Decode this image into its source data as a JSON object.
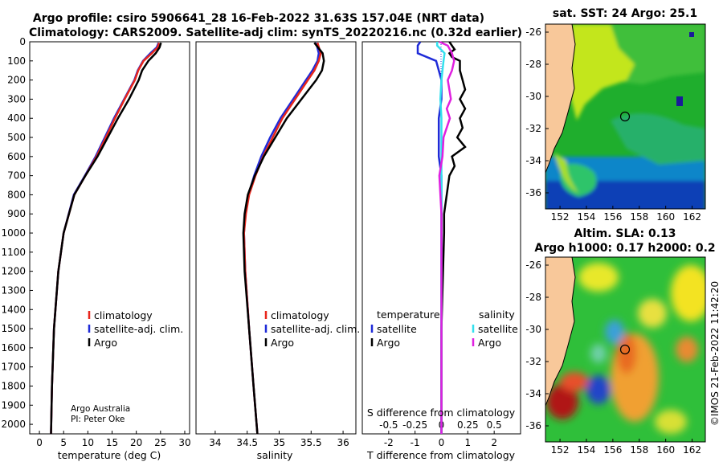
{
  "header": {
    "title_line1": "Argo profile: csiro 5906641_28 16-Feb-2022 31.63S 157.04E (NRT data)",
    "title_line2": "Climatology: CARS2009. Satellite-adj clim: synTS_20220216.nc (0.32d earlier)"
  },
  "colors": {
    "climatology": "#e8261c",
    "satellite_adj": "#1f2bd8",
    "argo": "#000000",
    "sat_salinity": "#33e0ee",
    "argo_salinity": "#e020e0",
    "land": "#f8c89a"
  },
  "chart_data": [
    {
      "type": "line",
      "name": "temperature-profile",
      "xlabel": "temperature (deg C)",
      "ylabel": "",
      "xlim": [
        -2,
        31
      ],
      "ylim": [
        0,
        2050
      ],
      "x_ticks": [
        "0",
        "5",
        "10",
        "15",
        "20",
        "25",
        "30"
      ],
      "y_ticks": [
        "0",
        "100",
        "200",
        "300",
        "400",
        "500",
        "600",
        "700",
        "800",
        "900",
        "1000",
        "1100",
        "1200",
        "1300",
        "1400",
        "1500",
        "1600",
        "1700",
        "1800",
        "1900",
        "2000"
      ],
      "legend": [
        "climatology",
        "satellite-adj. clim.",
        "Argo"
      ],
      "legend_position": "lower-right",
      "note_line1": "Argo Australia",
      "note_line2": "PI: Peter Oke",
      "series": [
        {
          "name": "climatology",
          "depth": [
            5,
            30,
            60,
            100,
            150,
            200,
            300,
            400,
            500,
            600,
            700,
            800,
            1000,
            1200,
            1500,
            1800,
            2050
          ],
          "values": [
            24.7,
            24.4,
            23.2,
            21.5,
            20.4,
            19.7,
            17.6,
            15.6,
            13.7,
            11.8,
            9.5,
            7.2,
            5.0,
            3.9,
            3.0,
            2.6,
            2.4
          ]
        },
        {
          "name": "satellite-adj. clim.",
          "depth": [
            5,
            30,
            60,
            100,
            150,
            200,
            300,
            400,
            500,
            600,
            700,
            800,
            1000,
            1200,
            1500,
            1800,
            2050
          ],
          "values": [
            24.6,
            24.2,
            22.9,
            21.4,
            20.3,
            19.6,
            17.5,
            15.4,
            13.5,
            11.6,
            9.4,
            7.1,
            5.0,
            3.9,
            3.0,
            2.6,
            2.4
          ]
        },
        {
          "name": "Argo",
          "depth": [
            5,
            30,
            60,
            100,
            150,
            200,
            300,
            400,
            500,
            600,
            700,
            800,
            1000,
            1200,
            1500,
            1800,
            2050
          ],
          "values": [
            25.1,
            24.8,
            24.0,
            22.5,
            21.2,
            20.5,
            18.5,
            16.2,
            14.1,
            12.0,
            9.5,
            7.2,
            5.0,
            3.9,
            3.0,
            2.6,
            2.4
          ]
        }
      ]
    },
    {
      "type": "line",
      "name": "salinity-profile",
      "xlabel": "salinity",
      "xlim": [
        33.7,
        36.2
      ],
      "ylim": [
        0,
        2050
      ],
      "x_ticks": [
        "34",
        "34.5",
        "35",
        "35.5",
        "36"
      ],
      "legend": [
        "climatology",
        "satellite-adj. clim.",
        "Argo"
      ],
      "legend_position": "lower-right",
      "series": [
        {
          "name": "climatology",
          "depth": [
            5,
            60,
            100,
            150,
            200,
            300,
            400,
            500,
            600,
            700,
            800,
            900,
            1000,
            1200,
            1500,
            1800,
            2050
          ],
          "values": [
            35.6,
            35.65,
            35.62,
            35.55,
            35.45,
            35.25,
            35.05,
            34.9,
            34.75,
            34.63,
            34.53,
            34.48,
            34.45,
            34.47,
            34.53,
            34.6,
            34.66
          ]
        },
        {
          "name": "satellite-adj. clim.",
          "depth": [
            5,
            60,
            100,
            150,
            200,
            300,
            400,
            500,
            600,
            700,
            800,
            900,
            1000,
            1200,
            1500,
            1800,
            2050
          ],
          "values": [
            35.58,
            35.62,
            35.6,
            35.52,
            35.42,
            35.22,
            35.02,
            34.86,
            34.72,
            34.61,
            34.52,
            34.47,
            34.45,
            34.47,
            34.53,
            34.6,
            34.66
          ]
        },
        {
          "name": "Argo",
          "depth": [
            5,
            60,
            100,
            150,
            200,
            300,
            400,
            500,
            600,
            700,
            800,
            900,
            1000,
            1200,
            1500,
            1800,
            2050
          ],
          "values": [
            35.55,
            35.68,
            35.7,
            35.67,
            35.58,
            35.35,
            35.12,
            34.94,
            34.76,
            34.62,
            34.51,
            34.46,
            34.44,
            34.46,
            34.53,
            34.6,
            34.66
          ]
        }
      ]
    },
    {
      "type": "line",
      "name": "difference-profile",
      "xlabel": "T difference from climatology",
      "xlabel2": "S difference from climatology",
      "xlim": [
        -3,
        3
      ],
      "ylim": [
        0,
        2050
      ],
      "x_ticks": [
        "-2",
        "-1",
        "0",
        "1",
        "2"
      ],
      "x2_ticks": [
        "-0.5",
        "-0.25",
        "0",
        "0.25",
        "0.5"
      ],
      "legend_temperature_heading": "temperature",
      "legend_salinity_heading": "salinity",
      "legend_temperature": [
        "satellite",
        "Argo"
      ],
      "legend_salinity": [
        "satellite",
        "Argo"
      ],
      "series": [
        {
          "name": "T satellite",
          "depth": [
            0,
            20,
            60,
            100,
            200,
            300,
            400,
            500,
            600,
            700,
            800,
            1000,
            1500,
            2050
          ],
          "values": [
            -0.8,
            -0.9,
            -0.9,
            -0.2,
            0,
            0,
            -0.1,
            -0.1,
            -0.1,
            0,
            0,
            0,
            0,
            0
          ]
        },
        {
          "name": "T Argo",
          "depth": [
            0,
            20,
            40,
            60,
            80,
            100,
            150,
            200,
            250,
            300,
            350,
            400,
            450,
            500,
            550,
            600,
            650,
            700,
            800,
            900,
            1000,
            1500,
            2050
          ],
          "values": [
            0.3,
            0.4,
            0.5,
            0.3,
            0.4,
            0.7,
            0.7,
            0.8,
            0.9,
            0.7,
            0.9,
            0.7,
            0.8,
            0.6,
            0.9,
            0.4,
            0.5,
            0.3,
            0.2,
            0.1,
            0.1,
            0,
            0
          ]
        },
        {
          "name": "S satellite",
          "depth": [
            0,
            20,
            60,
            100,
            200,
            300,
            400,
            500,
            700,
            1000,
            1500,
            2050
          ],
          "values": [
            -0.04,
            -0.04,
            0.03,
            0.02,
            0,
            -0.01,
            0,
            0,
            0,
            0,
            0,
            0
          ]
        },
        {
          "name": "S Argo",
          "depth": [
            0,
            20,
            60,
            100,
            150,
            200,
            300,
            350,
            400,
            500,
            600,
            700,
            800,
            900,
            1000,
            1500,
            2050
          ],
          "values": [
            -0.02,
            0.06,
            0.1,
            0.12,
            0.1,
            0.06,
            0.09,
            0.05,
            0.08,
            0.02,
            0.01,
            -0.02,
            -0.01,
            0,
            0,
            0,
            0
          ]
        }
      ]
    }
  ],
  "map_sst": {
    "title": "sat. SST: 24 Argo: 25.1",
    "lat_ticks": [
      "-26",
      "-28",
      "-30",
      "-32",
      "-34",
      "-36"
    ],
    "lon_ticks": [
      "152",
      "154",
      "156",
      "158",
      "160",
      "162"
    ]
  },
  "map_sla": {
    "title_line1": "Altim. SLA: 0.13",
    "title_line2": "Argo h1000: 0.17 h2000: 0.2",
    "lat_ticks": [
      "-26",
      "-28",
      "-30",
      "-32",
      "-34",
      "-36"
    ],
    "lon_ticks": [
      "152",
      "154",
      "156",
      "158",
      "160",
      "162"
    ]
  },
  "footer": {
    "timestamp": "©IMOS 21-Feb-2022 11:42:20"
  }
}
